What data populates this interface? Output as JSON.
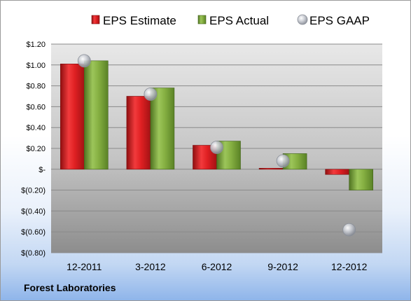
{
  "footer": {
    "company": "Forest Laboratories"
  },
  "colors": {
    "estimate": "#d7191c",
    "actual": "#7aa33b",
    "gaap": "#b5b9c2",
    "plot_bg_top": "#e6e6e6",
    "plot_bg_bottom": "#9a9a9a"
  },
  "chart_data": {
    "type": "bar",
    "title": "",
    "xlabel": "",
    "ylabel": "",
    "categories": [
      "12-2011",
      "3-2012",
      "6-2012",
      "9-2012",
      "12-2012"
    ],
    "series": [
      {
        "name": "EPS Estimate",
        "kind": "bar",
        "values": [
          1.01,
          0.7,
          0.23,
          0.01,
          -0.05
        ]
      },
      {
        "name": "EPS Actual",
        "kind": "bar",
        "values": [
          1.04,
          0.78,
          0.27,
          0.15,
          -0.2
        ]
      },
      {
        "name": "EPS GAAP",
        "kind": "marker",
        "values": [
          1.04,
          0.72,
          0.21,
          0.08,
          -0.58
        ]
      }
    ],
    "ylim": [
      -0.8,
      1.2
    ],
    "yticks": [
      1.2,
      1.0,
      0.8,
      0.6,
      0.4,
      0.2,
      0,
      -0.2,
      -0.4,
      -0.6,
      -0.8
    ],
    "ytick_labels": [
      "$1.20",
      "$1.00",
      "$0.80",
      "$0.60",
      "$0.40",
      "$0.20",
      "$-",
      "$(0.20)",
      "$(0.40)",
      "$(0.60)",
      "$(0.80)"
    ],
    "grid": true,
    "legend_position": "top"
  }
}
